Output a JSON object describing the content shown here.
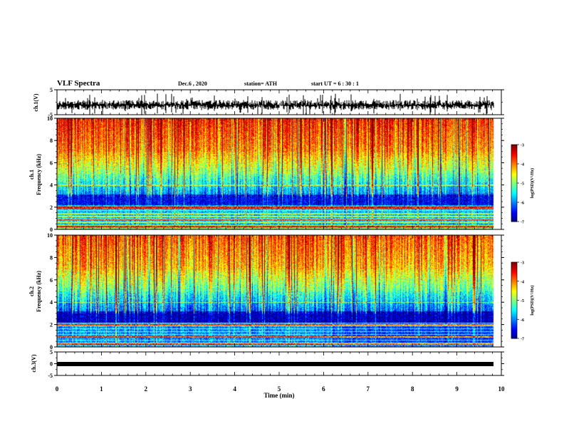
{
  "header": {
    "title": "VLF Spectra",
    "date": "Dec.6  , 2020",
    "station": "station= ATH",
    "start": "start  UT =   6  : 30 : 1"
  },
  "chart_data": [
    {
      "type": "line",
      "name": "ch1-waveform",
      "ylabel": "ch.1(V)",
      "ylim": [
        -5,
        5
      ],
      "yticks": [
        "5",
        "-5"
      ],
      "xlim": [
        0,
        10
      ]
    },
    {
      "type": "heatmap",
      "name": "ch1-spectrogram",
      "ylabel_top": "ch.1",
      "ylabel": "Frequency  (kHz)",
      "ylim": [
        0,
        10
      ],
      "yticks": [
        "0",
        "2",
        "4",
        "6",
        "8",
        "10"
      ],
      "xlim": [
        0,
        10
      ],
      "colorbar": {
        "label": "log(PSD)(V²/Hz)",
        "range": [
          -7,
          -3
        ],
        "ticks": [
          "-3",
          "-4",
          "-5",
          "-6",
          "-7"
        ],
        "colormap": "jet"
      }
    },
    {
      "type": "heatmap",
      "name": "ch2-spectrogram",
      "ylabel_top": "ch.2",
      "ylabel": "Frequency  (kHz)",
      "ylim": [
        0,
        10
      ],
      "yticks": [
        "0",
        "2",
        "4",
        "6",
        "8",
        "10"
      ],
      "xlim": [
        0,
        10
      ],
      "colorbar": {
        "label": "log(PSD)(V²/Hz)",
        "range": [
          -7,
          -3
        ],
        "ticks": [
          "-3",
          "-4",
          "-5",
          "-6",
          "-7"
        ],
        "colormap": "jet"
      }
    },
    {
      "type": "line",
      "name": "ch3-waveform",
      "ylabel": "ch.3(V)",
      "ylim": [
        -5,
        5
      ],
      "yticks": [
        "5",
        "0",
        "-5"
      ],
      "xlim": [
        0,
        10
      ]
    }
  ],
  "xaxis": {
    "label": "Time  (min)",
    "ticks": [
      "0",
      "1",
      "2",
      "3",
      "4",
      "5",
      "6",
      "7",
      "8",
      "9",
      "10"
    ]
  }
}
